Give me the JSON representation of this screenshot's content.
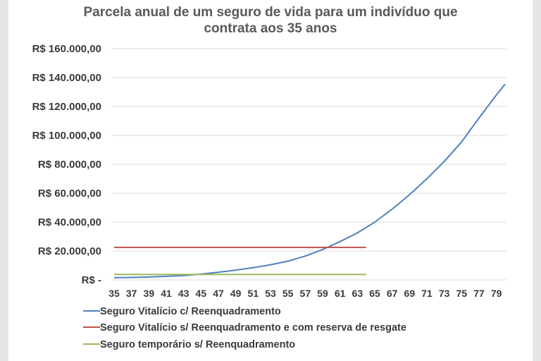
{
  "chart_data": {
    "type": "line",
    "title_lines": [
      "Parcela anual de um seguro de vida para um indivíduo que",
      "contrata aos 35 anos"
    ],
    "xlabel": "",
    "ylabel": "",
    "x_categories": [
      "35",
      "37",
      "39",
      "41",
      "43",
      "45",
      "47",
      "49",
      "51",
      "53",
      "55",
      "57",
      "59",
      "61",
      "63",
      "65",
      "67",
      "69",
      "71",
      "73",
      "75",
      "77",
      "79"
    ],
    "y_ticks": [
      {
        "value": 0,
        "label": "R$ -"
      },
      {
        "value": 20000,
        "label": "R$ 20.000,00"
      },
      {
        "value": 40000,
        "label": "R$ 40.000,00"
      },
      {
        "value": 60000,
        "label": "R$ 60.000,00"
      },
      {
        "value": 80000,
        "label": "R$ 80.000,00"
      },
      {
        "value": 100000,
        "label": "R$ 100.000,00"
      },
      {
        "value": 120000,
        "label": "R$ 120.000,00"
      },
      {
        "value": 140000,
        "label": "R$ 140.000,00"
      },
      {
        "value": 160000,
        "label": "R$ 160.000,00"
      }
    ],
    "ylim": [
      0,
      160000
    ],
    "xlim": [
      35,
      80
    ],
    "grid": true,
    "legend_position": "bottom",
    "series": [
      {
        "name": "Seguro Vitalício c/ Reenquadramento",
        "color": "#4f81bd",
        "points": [
          [
            35,
            1500
          ],
          [
            37,
            1700
          ],
          [
            39,
            2000
          ],
          [
            41,
            2500
          ],
          [
            43,
            3000
          ],
          [
            45,
            4000
          ],
          [
            47,
            5300
          ],
          [
            49,
            6800
          ],
          [
            51,
            8500
          ],
          [
            53,
            10500
          ],
          [
            55,
            13000
          ],
          [
            57,
            16500
          ],
          [
            59,
            21000
          ],
          [
            61,
            26500
          ],
          [
            63,
            32500
          ],
          [
            65,
            40000
          ],
          [
            67,
            49000
          ],
          [
            69,
            59000
          ],
          [
            71,
            70000
          ],
          [
            73,
            82000
          ],
          [
            75,
            95500
          ],
          [
            77,
            112000
          ],
          [
            79,
            128000
          ],
          [
            80,
            135500
          ]
        ]
      },
      {
        "name": "Seguro Vitalício s/ Reenquadramento e com reserva de resgate",
        "color": "#c0504d",
        "points": [
          [
            35,
            22500
          ],
          [
            64,
            22500
          ]
        ]
      },
      {
        "name": "Seguro temporário  s/ Reenquadramento",
        "color": "#9bbb59",
        "points": [
          [
            35,
            3800
          ],
          [
            64,
            3800
          ]
        ]
      }
    ]
  }
}
